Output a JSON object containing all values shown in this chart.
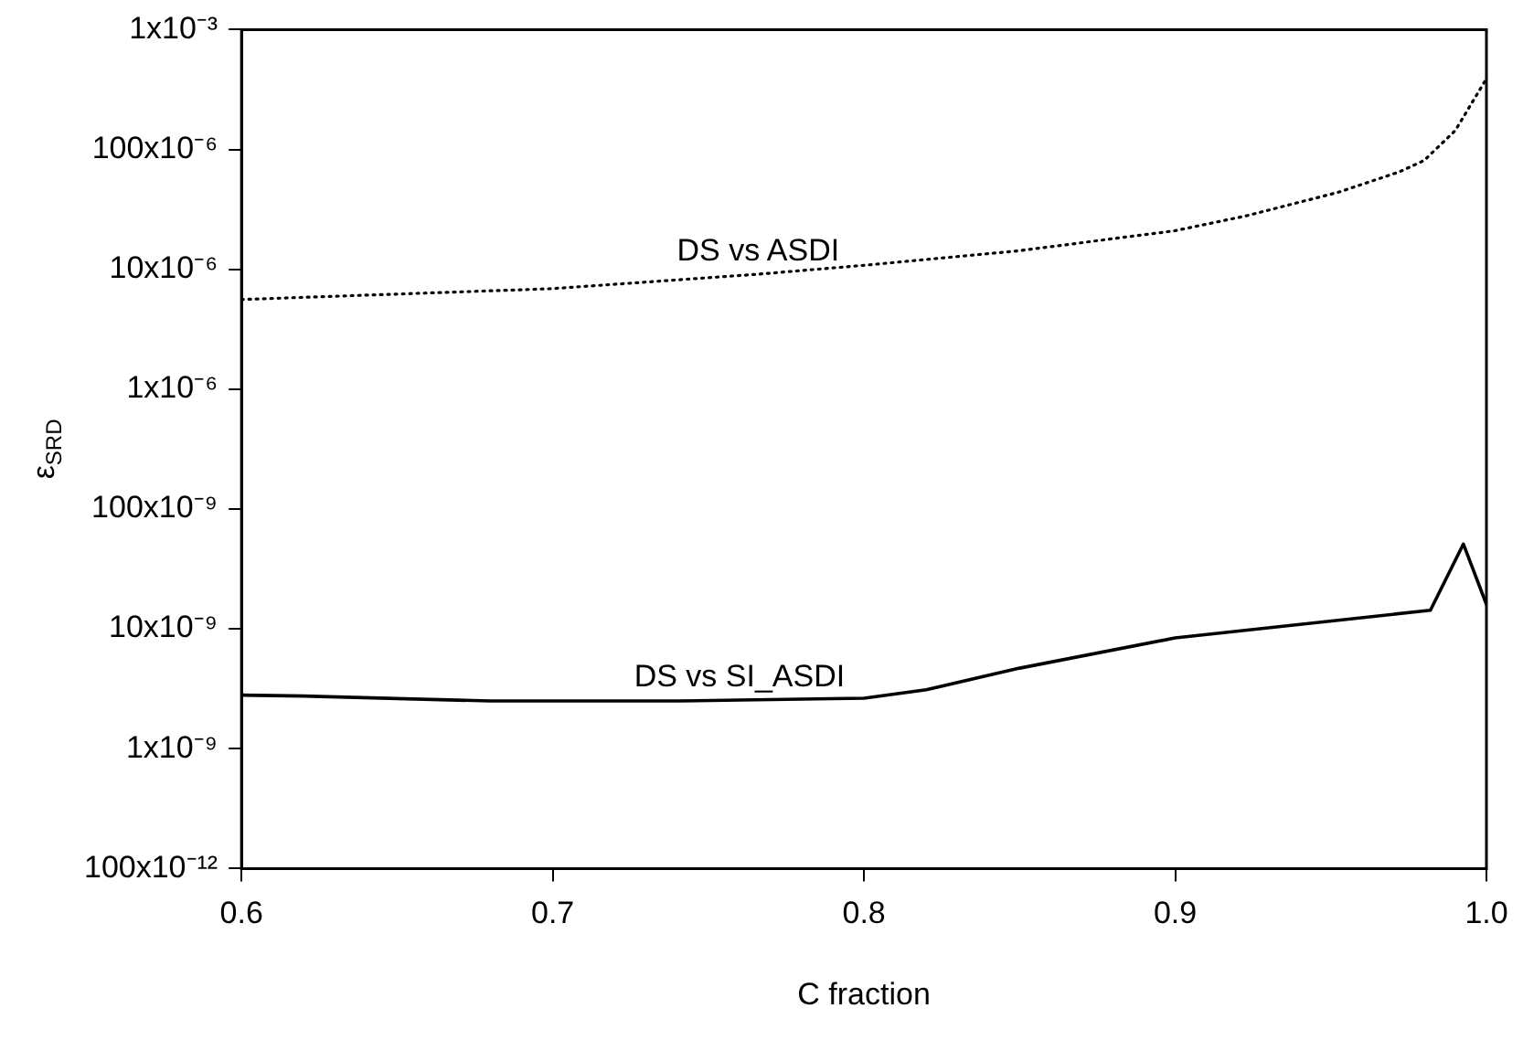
{
  "chart_data": {
    "type": "line",
    "xlabel": "C fraction",
    "ylabel": "ε$_{SRD}$",
    "x": [
      0.6,
      0.62,
      0.68,
      0.7,
      0.74,
      0.76,
      0.8,
      0.82,
      0.85,
      0.9,
      0.982,
      0.9926,
      1.0
    ],
    "series": [
      {
        "name": "DS vs SI_ASDI",
        "color": "#000000",
        "line_style": "solid",
        "values": [
          2.8e-09,
          2.75e-09,
          2.5e-09,
          2.5e-09,
          2.5e-09,
          2.55e-09,
          2.64e-09,
          3.1e-09,
          4.7e-09,
          8.4e-09,
          1.43e-08,
          5.1e-08,
          1.6e-08
        ]
      },
      {
        "name": "DS vs ASDI",
        "color": "#000000",
        "line_style": "dotted",
        "x": [
          0.6,
          0.7,
          0.766,
          0.8,
          0.85,
          0.9,
          0.923,
          0.9525,
          0.972,
          0.98,
          0.99,
          1.0
        ],
        "values": [
          5.6e-06,
          6.9e-06,
          9.1e-06,
          1.08e-05,
          1.43e-05,
          2.1e-05,
          2.8e-05,
          4.4e-05,
          6.5e-05,
          8.1e-05,
          0.000144,
          0.00039
        ]
      }
    ],
    "log": "y",
    "grid": false,
    "legend": false,
    "marker": "none",
    "xlim": [
      0.6,
      1.0
    ],
    "xticks": [
      0.6,
      0.7,
      0.8,
      0.9,
      {
        "value": 1.0,
        "label": "1.0"
      }
    ],
    "ylim": [
      1e-10,
      0.001
    ],
    "yticks": [
      {
        "value": 1e-10,
        "label": "100x10⁻¹²"
      },
      {
        "value": 1e-09,
        "label": "1x10⁻⁹"
      },
      {
        "value": 1e-08,
        "label": "10x10⁻⁹"
      },
      {
        "value": 1e-07,
        "label": "100x10⁻⁹"
      },
      {
        "value": 1e-06,
        "label": "1x10⁻⁶"
      },
      {
        "value": 1e-05,
        "label": "10x10⁻⁶"
      },
      {
        "value": 0.0001,
        "label": "100x10⁻⁶"
      },
      {
        "value": 0.001,
        "label": "1x10⁻³"
      }
    ]
  }
}
